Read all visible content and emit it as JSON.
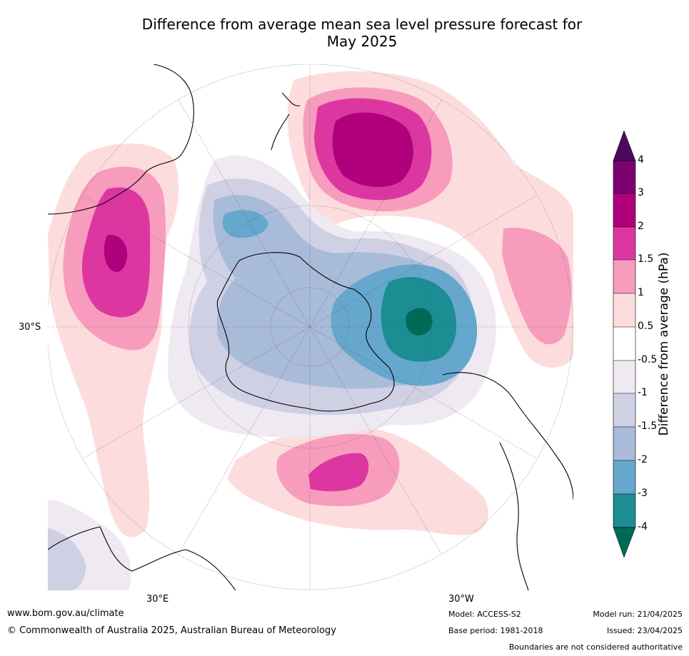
{
  "title": {
    "line1": "Difference from average mean sea level pressure forecast for",
    "line2": "May 2025"
  },
  "map_labels": {
    "lat_30s": "30°S",
    "lon_30e": "30°E",
    "lon_30w": "30°W"
  },
  "colorbar": {
    "title": "Difference from average (hPa)",
    "ticks": [
      "4",
      "3",
      "2",
      "1.5",
      "1",
      "0.5",
      "-0.5",
      "-1",
      "-1.5",
      "-2",
      "-3",
      "-4"
    ],
    "colors": [
      "#4d0a5c",
      "#7b0070",
      "#b0007c",
      "#dc37a0",
      "#f79cbc",
      "#fddcdd",
      "#ffffff",
      "#efe9f2",
      "#cfd0e4",
      "#a8bbd9",
      "#66a7cd",
      "#1c8d92",
      "#006a58"
    ]
  },
  "footer": {
    "url": "www.bom.gov.au/climate",
    "copyright": "© Commonwealth of Australia 2025, Australian Bureau of Meteorology",
    "model": "Model: ACCESS-S2",
    "base_period": "Base period: 1981-2018",
    "model_run": "Model run: 21/04/2025",
    "issued": "Issued: 23/04/2025",
    "disclaimer": "Boundaries are not considered authoritative"
  }
}
